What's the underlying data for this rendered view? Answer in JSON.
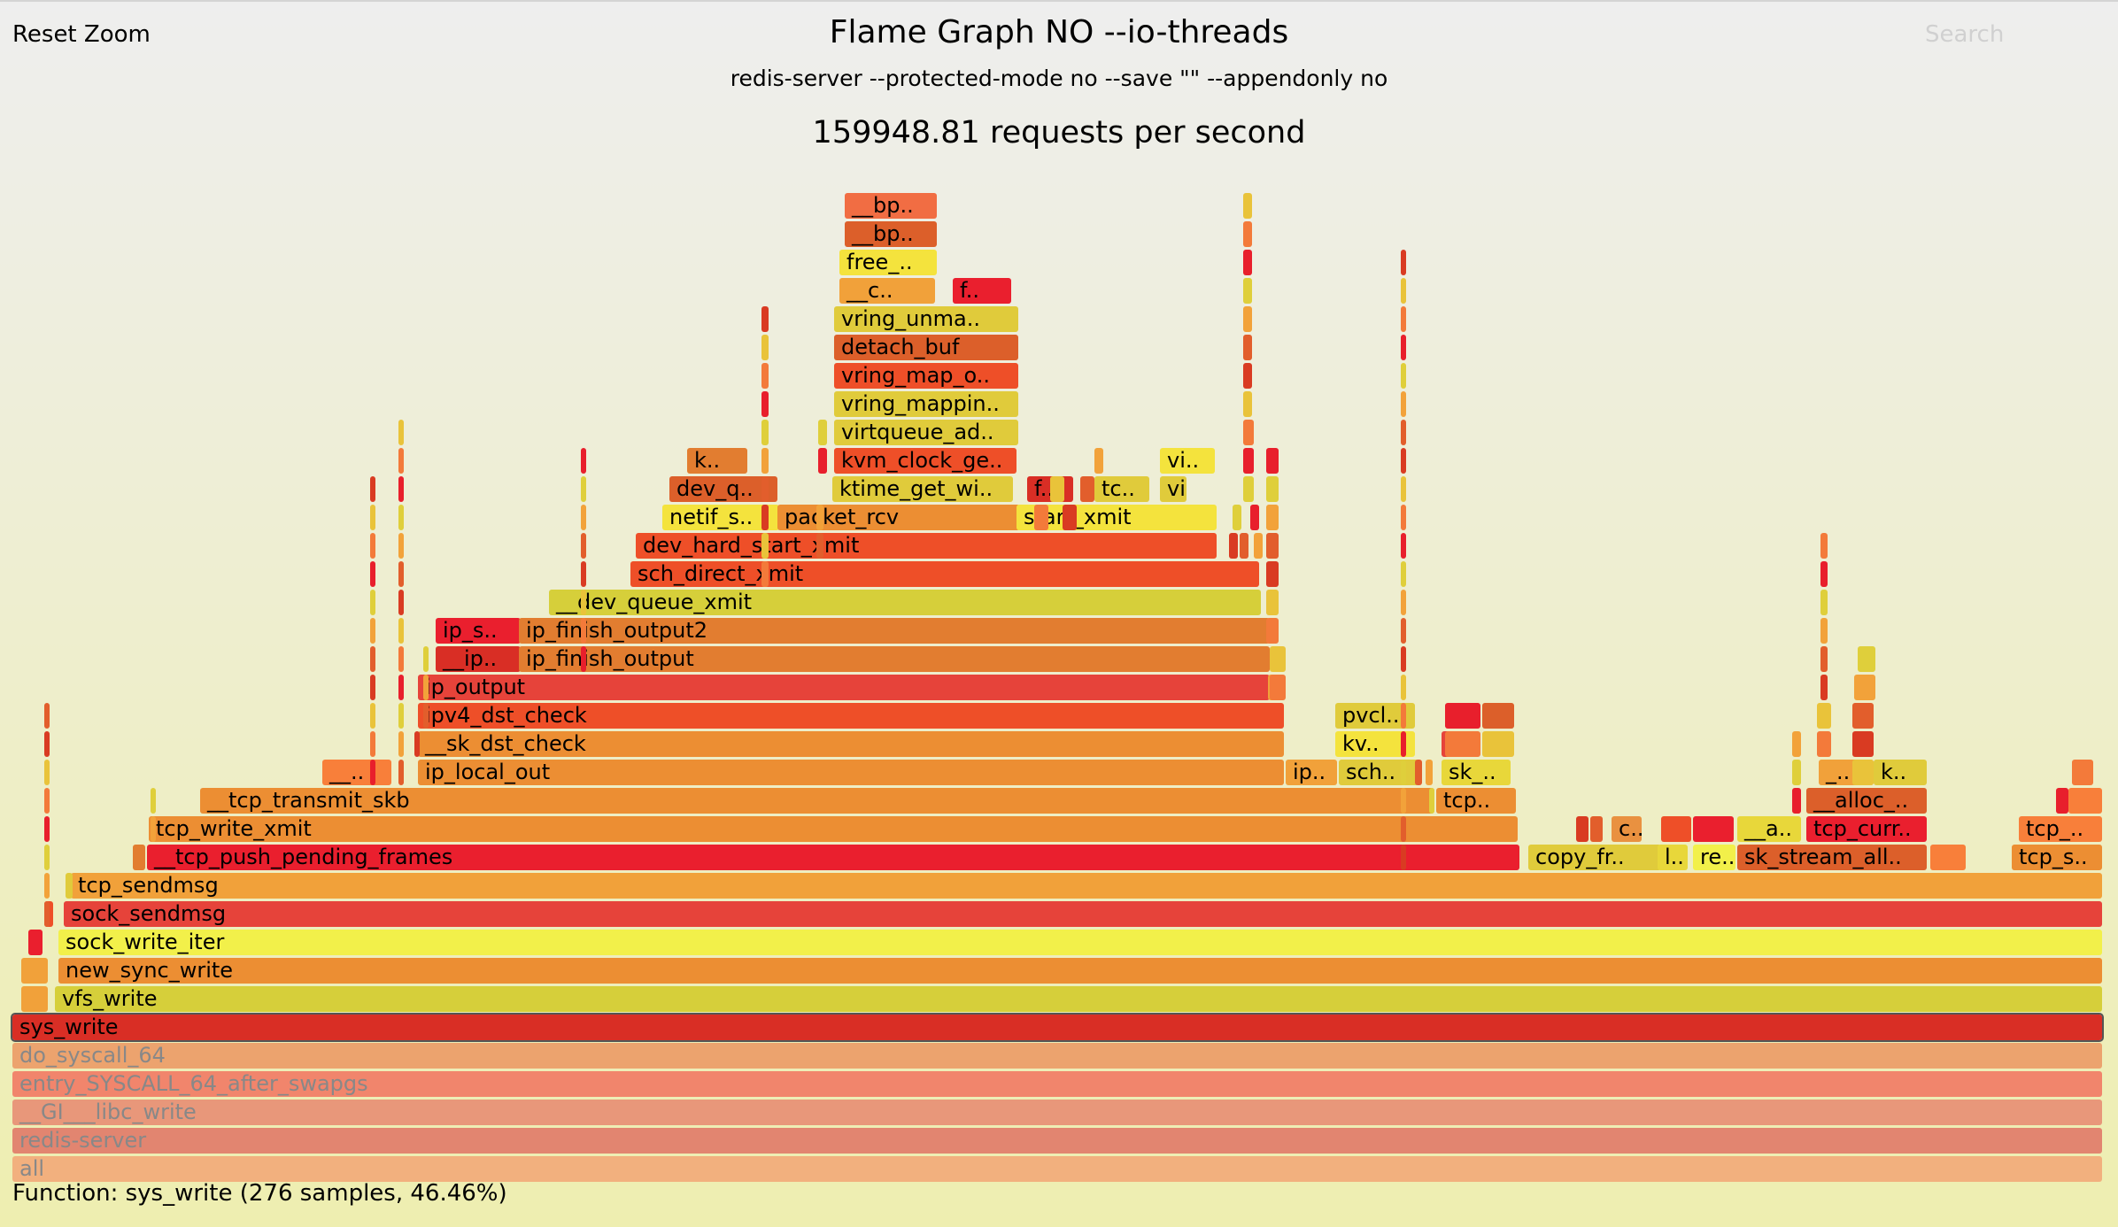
{
  "header": {
    "reset_zoom": "Reset Zoom",
    "title": "Flame Graph NO --io-threads",
    "subtitle": "redis-server --protected-mode no --save \"\" --appendonly no",
    "throughput": "159948.81 requests per second",
    "search": "Search"
  },
  "details": "Function: sys_write (276 samples, 46.46%)",
  "colors": {
    "c1": "#f16d43",
    "c2": "#f87f3a",
    "c3": "#d6cf3a",
    "c4": "#e8d73a",
    "c5": "#e99140",
    "c6": "#f4e33d",
    "c7": "#e0cb3b",
    "c8": "#d92e25",
    "c9": "#e27d30",
    "c10": "#ee4f28",
    "c11": "#ea1f2e",
    "c12": "#dc5f2a",
    "c13": "#ec8e33",
    "c14": "#f1a13a",
    "c15": "#e6433a",
    "c16": "#f2f04a",
    "dim_syscall": "#eca36e",
    "dim_entry": "#f1856c",
    "dim_libc": "#e8977a",
    "dim_redis": "#e28570",
    "dim_all": "#f2b07e"
  },
  "frames": [
    {
      "label": "all",
      "color": "dim_all",
      "dim": true
    },
    {
      "label": "redis-server",
      "color": "dim_redis",
      "dim": true
    },
    {
      "label": "__GI___libc_write",
      "color": "dim_libc",
      "dim": true
    },
    {
      "label": "entry_SYSCALL_64_after_swapgs",
      "color": "dim_entry",
      "dim": true
    },
    {
      "label": "do_syscall_64",
      "color": "dim_syscall",
      "dim": true
    },
    {
      "label": "sys_write",
      "color": "c8",
      "selected": true
    },
    {
      "label": "vfs_write",
      "color": "c3"
    },
    {
      "label": "",
      "color": "c14"
    },
    {
      "label": "new_sync_write",
      "color": "c13"
    },
    {
      "label": "",
      "color": "c14"
    },
    {
      "label": "sock_write_iter",
      "color": "c16"
    },
    {
      "label": "",
      "color": "c11"
    },
    {
      "label": "sock_sendmsg",
      "color": "c15"
    },
    {
      "label": "",
      "color": "c10"
    },
    {
      "label": "tcp_sendmsg",
      "color": "c14"
    },
    {
      "label": "",
      "color": "c7"
    },
    {
      "label": "__tcp_push_pending_frames",
      "color": "c11"
    },
    {
      "label": "",
      "color": "c9"
    },
    {
      "label": "copy_fr..",
      "color": "c7"
    },
    {
      "label": "l..",
      "color": "c4"
    },
    {
      "label": "re..",
      "color": "c16"
    },
    {
      "label": "sk_stream_all..",
      "color": "c12"
    },
    {
      "label": "",
      "color": "c2"
    },
    {
      "label": "tcp_s..",
      "color": "c13"
    },
    {
      "label": "tcp_write_xmit",
      "color": "c13"
    },
    {
      "label": "c..",
      "color": "c5"
    },
    {
      "label": "",
      "color": "c10"
    },
    {
      "label": "",
      "color": "c11"
    },
    {
      "label": "__a..",
      "color": "c4"
    },
    {
      "label": "tcp_curr..",
      "color": "c11"
    },
    {
      "label": "tcp_..",
      "color": "c2"
    },
    {
      "label": "__tcp_transmit_skb",
      "color": "c13"
    },
    {
      "label": "tcp..",
      "color": "c13"
    },
    {
      "label": "__alloc_..",
      "color": "c12"
    },
    {
      "label": "",
      "color": "c2"
    },
    {
      "label": "__..",
      "color": "c2"
    },
    {
      "label": "ip_local_out",
      "color": "c13"
    },
    {
      "label": "ip..",
      "color": "c14"
    },
    {
      "label": "sch..",
      "color": "c7"
    },
    {
      "label": "sk_..",
      "color": "c4"
    },
    {
      "label": "_..",
      "color": "c14"
    },
    {
      "label": "k..",
      "color": "c7"
    },
    {
      "label": "__sk_dst_check",
      "color": "c13"
    },
    {
      "label": "kv..",
      "color": "c6"
    },
    {
      "label": "",
      "color": "c15"
    },
    {
      "label": "ipv4_dst_check",
      "color": "c10"
    },
    {
      "label": "pvcl..",
      "color": "c7"
    },
    {
      "label": "",
      "color": "c12"
    },
    {
      "label": "ip_output",
      "color": "c15"
    },
    {
      "label": "",
      "color": "c14"
    },
    {
      "label": "__ip..",
      "color": "c8"
    },
    {
      "label": "ip_finish_output",
      "color": "c9"
    },
    {
      "label": "ip_s..",
      "color": "c11"
    },
    {
      "label": "ip_finish_output2",
      "color": "c9"
    },
    {
      "label": "__dev_queue_xmit",
      "color": "c3"
    },
    {
      "label": "sch_direct_xmit",
      "color": "c10"
    },
    {
      "label": "dev_hard_start_xmit",
      "color": "c10"
    },
    {
      "label": "netif_s..",
      "color": "c6"
    },
    {
      "label": "packet_rcv",
      "color": "c13"
    },
    {
      "label": "start_xmit",
      "color": "c6"
    },
    {
      "label": "dev_q..",
      "color": "c12"
    },
    {
      "label": "ktime_get_wi..",
      "color": "c7"
    },
    {
      "label": "f..",
      "color": "c8"
    },
    {
      "label": "tc..",
      "color": "c7"
    },
    {
      "label": "vi..",
      "color": "c7"
    },
    {
      "label": "k..",
      "color": "c9"
    },
    {
      "label": "kvm_clock_ge..",
      "color": "c10"
    },
    {
      "label": "vi..",
      "color": "c6"
    },
    {
      "label": "virtqueue_ad..",
      "color": "c7"
    },
    {
      "label": "vring_mappin..",
      "color": "c7"
    },
    {
      "label": "vring_map_o..",
      "color": "c10"
    },
    {
      "label": "detach_buf",
      "color": "c12"
    },
    {
      "label": "vring_unma..",
      "color": "c7"
    },
    {
      "label": "__c..",
      "color": "c14"
    },
    {
      "label": "f..",
      "color": "c11"
    },
    {
      "label": "free_..",
      "color": "c6"
    },
    {
      "label": "__bp..",
      "color": "c12"
    },
    {
      "label": "__bp..",
      "color": "c1"
    }
  ]
}
